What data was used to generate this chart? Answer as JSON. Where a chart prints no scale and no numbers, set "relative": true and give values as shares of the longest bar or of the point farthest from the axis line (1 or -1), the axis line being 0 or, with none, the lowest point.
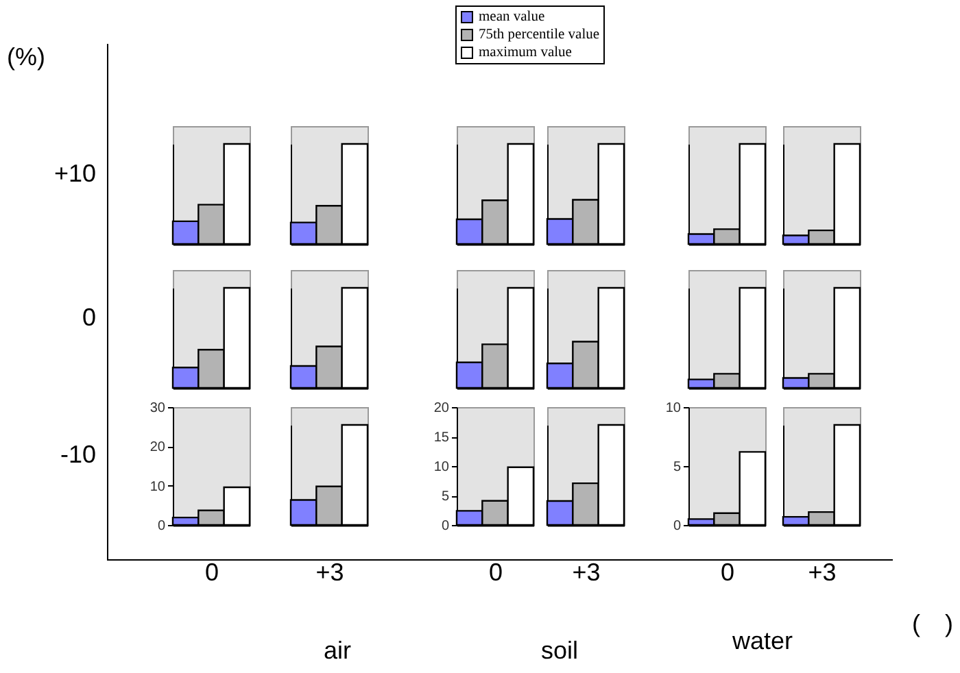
{
  "chart_data": [
    {
      "type": "bar",
      "relative": true,
      "categories": [
        null
      ],
      "series": [
        {
          "name": "mean value",
          "color": "#8080ff",
          "values": [
            0.227
          ]
        },
        {
          "name": "75th percentile value",
          "color": "#b3b3b3",
          "values": [
            0.393
          ]
        },
        {
          "name": "maximum value",
          "color": "#ffffff",
          "values": [
            1
          ]
        }
      ],
      "tick_labels": false,
      "legend": "top"
    },
    {
      "type": "bar",
      "relative": true,
      "categories": [
        null
      ],
      "series": [
        {
          "color": "#8080ff",
          "values": [
            0.215
          ]
        },
        {
          "color": "#b3b3b3",
          "values": [
            0.382
          ]
        },
        {
          "color": "#ffffff",
          "values": [
            1
          ]
        }
      ],
      "tick_labels": false
    },
    {
      "type": "bar",
      "relative": true,
      "categories": [
        null
      ],
      "series": [
        {
          "color": "#8080ff",
          "values": [
            0.247
          ]
        },
        {
          "color": "#b3b3b3",
          "values": [
            0.437
          ]
        },
        {
          "color": "#ffffff",
          "values": [
            1
          ]
        }
      ],
      "tick_labels": false
    },
    {
      "type": "bar",
      "relative": true,
      "categories": [
        null
      ],
      "series": [
        {
          "color": "#8080ff",
          "values": [
            0.25
          ]
        },
        {
          "color": "#b3b3b3",
          "values": [
            0.442
          ]
        },
        {
          "color": "#ffffff",
          "values": [
            1
          ]
        }
      ],
      "tick_labels": false
    },
    {
      "type": "bar",
      "relative": true,
      "categories": [
        null
      ],
      "series": [
        {
          "color": "#8080ff",
          "values": [
            0.099
          ]
        },
        {
          "color": "#b3b3b3",
          "values": [
            0.148
          ]
        },
        {
          "color": "#ffffff",
          "values": [
            1
          ]
        }
      ],
      "tick_labels": false
    },
    {
      "type": "bar",
      "relative": true,
      "categories": [
        null
      ],
      "series": [
        {
          "color": "#8080ff",
          "values": [
            0.086
          ]
        },
        {
          "color": "#b3b3b3",
          "values": [
            0.136
          ]
        },
        {
          "color": "#ffffff",
          "values": [
            1
          ]
        }
      ],
      "tick_labels": false
    },
    {
      "type": "bar",
      "relative": true,
      "categories": [
        null
      ],
      "series": [
        {
          "color": "#8080ff",
          "values": [
            0.204
          ]
        },
        {
          "color": "#b3b3b3",
          "values": [
            0.382
          ]
        },
        {
          "color": "#ffffff",
          "values": [
            1
          ]
        }
      ],
      "tick_labels": false
    },
    {
      "type": "bar",
      "relative": true,
      "categories": [
        null
      ],
      "series": [
        {
          "color": "#8080ff",
          "values": [
            0.219
          ]
        },
        {
          "color": "#b3b3b3",
          "values": [
            0.414
          ]
        },
        {
          "color": "#ffffff",
          "values": [
            1
          ]
        }
      ],
      "tick_labels": false
    },
    {
      "type": "bar",
      "relative": true,
      "categories": [
        null
      ],
      "series": [
        {
          "color": "#8080ff",
          "values": [
            0.255
          ]
        },
        {
          "color": "#b3b3b3",
          "values": [
            0.436
          ]
        },
        {
          "color": "#ffffff",
          "values": [
            1
          ]
        }
      ],
      "tick_labels": false
    },
    {
      "type": "bar",
      "relative": true,
      "categories": [
        null
      ],
      "series": [
        {
          "color": "#8080ff",
          "values": [
            0.245
          ]
        },
        {
          "color": "#b3b3b3",
          "values": [
            0.462
          ]
        },
        {
          "color": "#ffffff",
          "values": [
            1
          ]
        }
      ],
      "tick_labels": false
    },
    {
      "type": "bar",
      "relative": true,
      "categories": [
        null
      ],
      "series": [
        {
          "color": "#8080ff",
          "values": [
            0.085
          ]
        },
        {
          "color": "#b3b3b3",
          "values": [
            0.141
          ]
        },
        {
          "color": "#ffffff",
          "values": [
            1
          ]
        }
      ],
      "tick_labels": false
    },
    {
      "type": "bar",
      "relative": true,
      "categories": [
        null
      ],
      "series": [
        {
          "color": "#8080ff",
          "values": [
            0.099
          ]
        },
        {
          "color": "#b3b3b3",
          "values": [
            0.141
          ]
        },
        {
          "color": "#ffffff",
          "values": [
            1
          ]
        }
      ],
      "tick_labels": false
    },
    {
      "type": "bar",
      "categories": [
        null
      ],
      "series": [
        {
          "color": "#8080ff",
          "values": [
            1.9
          ]
        },
        {
          "color": "#b3b3b3",
          "values": [
            3.7
          ]
        },
        {
          "color": "#ffffff",
          "values": [
            9.6
          ]
        }
      ],
      "ylim": [
        0,
        30
      ],
      "yticks": [
        0,
        10,
        20,
        30
      ],
      "tick_labels": "y",
      "xlabel": "0"
    },
    {
      "type": "bar",
      "relative": true,
      "categories": [
        null
      ],
      "series": [
        {
          "color": "#8080ff",
          "values": [
            0.25
          ]
        },
        {
          "color": "#b3b3b3",
          "values": [
            0.385
          ]
        },
        {
          "color": "#ffffff",
          "values": [
            1
          ]
        }
      ],
      "tick_labels": false,
      "xlabel": "+3"
    },
    {
      "type": "bar",
      "categories": [
        null
      ],
      "series": [
        {
          "color": "#8080ff",
          "values": [
            2.4
          ]
        },
        {
          "color": "#b3b3b3",
          "values": [
            4.1
          ]
        },
        {
          "color": "#ffffff",
          "values": [
            9.8
          ]
        }
      ],
      "ylim": [
        0,
        20
      ],
      "yticks": [
        0,
        5,
        10,
        15,
        20
      ],
      "tick_labels": "y",
      "xlabel": "0"
    },
    {
      "type": "bar",
      "relative": true,
      "categories": [
        null
      ],
      "series": [
        {
          "color": "#8080ff",
          "values": [
            0.24
          ]
        },
        {
          "color": "#b3b3b3",
          "values": [
            0.417
          ]
        },
        {
          "color": "#ffffff",
          "values": [
            1
          ]
        }
      ],
      "tick_labels": false,
      "xlabel": "+3"
    },
    {
      "type": "bar",
      "categories": [
        null
      ],
      "series": [
        {
          "color": "#8080ff",
          "values": [
            0.5
          ]
        },
        {
          "color": "#b3b3b3",
          "values": [
            1.0
          ]
        },
        {
          "color": "#ffffff",
          "values": [
            6.2
          ]
        }
      ],
      "ylim": [
        0,
        10
      ],
      "yticks": [
        0,
        5,
        10
      ],
      "tick_labels": "y",
      "xlabel": "0"
    },
    {
      "type": "bar",
      "relative": true,
      "categories": [
        null
      ],
      "series": [
        {
          "color": "#8080ff",
          "values": [
            0.081
          ]
        },
        {
          "color": "#b3b3b3",
          "values": [
            0.129
          ]
        },
        {
          "color": "#ffffff",
          "values": [
            1
          ]
        }
      ],
      "tick_labels": false,
      "xlabel": "+3"
    },
    {
      "type": "other",
      "annotations": [
        "(%)",
        "+10",
        "0",
        "-10",
        "air",
        "soil",
        "water",
        "(　)"
      ]
    }
  ]
}
